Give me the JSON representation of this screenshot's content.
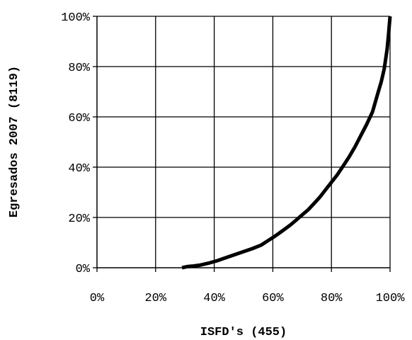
{
  "chart_data": {
    "type": "line",
    "xlabel": "ISFD's (455)",
    "ylabel": "Egresados 2007 (8119)",
    "xlim": [
      0,
      100
    ],
    "ylim": [
      0,
      100
    ],
    "x_ticks": [
      "0%",
      "20%",
      "40%",
      "60%",
      "80%",
      "100%"
    ],
    "y_ticks": [
      "0%",
      "20%",
      "40%",
      "60%",
      "80%",
      "100%"
    ],
    "grid": true,
    "legend": "none",
    "series": [
      {
        "line_color": "#000000",
        "x": [
          29,
          31,
          33,
          35,
          38,
          41,
          44,
          47,
          50,
          53,
          56,
          58,
          60,
          62,
          64,
          66,
          68,
          70,
          72,
          74,
          76,
          78,
          80,
          82,
          84,
          86,
          88,
          90,
          92,
          94,
          95,
          96,
          97,
          98,
          98.5,
          99,
          99.5,
          100
        ],
        "y": [
          0,
          0.5,
          0.7,
          1,
          1.8,
          2.8,
          4,
          5.2,
          6.4,
          7.6,
          9,
          10.5,
          12,
          13.6,
          15.3,
          17,
          19,
          21,
          23,
          25.5,
          28,
          31,
          34,
          37,
          40.5,
          44,
          48,
          52.5,
          57,
          62,
          66,
          70,
          74,
          79,
          83,
          87,
          93,
          100
        ]
      }
    ]
  }
}
